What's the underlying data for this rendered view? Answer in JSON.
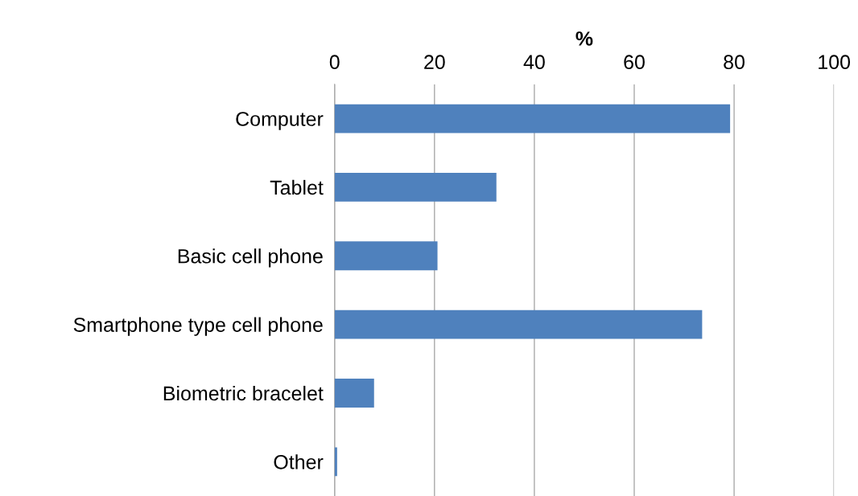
{
  "chart_data": {
    "type": "bar",
    "orientation": "horizontal",
    "xlabel": "%",
    "categories": [
      "Computer",
      "Tablet",
      "Basic cell phone",
      "Smartphone type cell phone",
      "Biometric bracelet",
      "Other"
    ],
    "values": [
      79.2,
      32.4,
      20.6,
      73.6,
      7.9,
      0.5
    ],
    "color": "#4f81bd",
    "xlim": [
      0,
      100
    ],
    "xticks": [
      0,
      20,
      40,
      60,
      80,
      100
    ],
    "grid": "x",
    "legend": false
  }
}
